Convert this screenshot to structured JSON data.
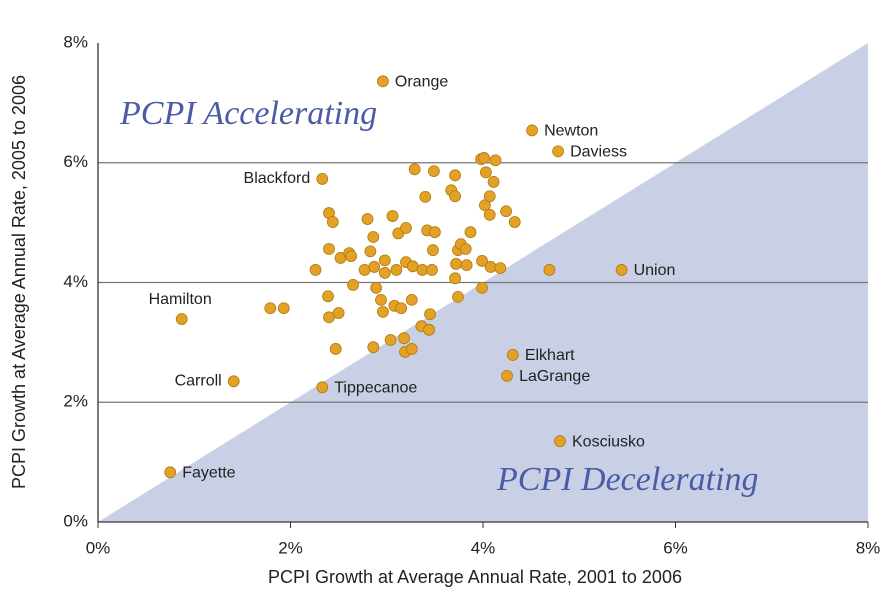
{
  "chart_data": {
    "type": "scatter",
    "x_label": "PCPI Growth at Average Annual Rate, 2001 to 2006",
    "y_label": "PCPI Growth at Average Annual Rate, 2005 to 2006",
    "annotations": [
      "PCPI Accelerating",
      "PCPI Decelerating"
    ],
    "color": "#e3a126",
    "region_color": "#c9d0e6",
    "grid": true,
    "xlim": [
      0,
      8
    ],
    "ylim": [
      0,
      8
    ],
    "xticks": [
      {
        "value": 0,
        "label": "0%"
      },
      {
        "value": 2,
        "label": "2%"
      },
      {
        "value": 4,
        "label": "4%"
      },
      {
        "value": 6,
        "label": "6%"
      },
      {
        "value": 8,
        "label": "8%"
      }
    ],
    "yticks": [
      {
        "value": 0,
        "label": "0%"
      },
      {
        "value": 2,
        "label": "2%"
      },
      {
        "value": 4,
        "label": "4%"
      },
      {
        "value": 6,
        "label": "6%"
      },
      {
        "value": 8,
        "label": "8%"
      }
    ],
    "labels": [
      "Orange",
      "Newton",
      "Daviess",
      "Blackford",
      "Union",
      "Hamilton",
      "Elkhart",
      "LaGrange",
      "Carroll",
      "Tippecanoe",
      "Kosciusko",
      "Fayette",
      null,
      null,
      null,
      null,
      null,
      null,
      null,
      null,
      null,
      null,
      null,
      null,
      null,
      null,
      null,
      null,
      null,
      null,
      null,
      null,
      null,
      null,
      null,
      null,
      null,
      null,
      null,
      null,
      null,
      null,
      null,
      null,
      null,
      null,
      null,
      null,
      null,
      null,
      null,
      null,
      null,
      null,
      null,
      null,
      null,
      null,
      null,
      null,
      null,
      null,
      null,
      null,
      null,
      null,
      null,
      null,
      null,
      null,
      null,
      null,
      null,
      null,
      null,
      null,
      null,
      null,
      null,
      null,
      null,
      null,
      null,
      null,
      null
    ],
    "x": [
      2.96,
      4.51,
      4.78,
      2.33,
      5.44,
      0.87,
      4.31,
      4.25,
      1.41,
      2.33,
      4.8,
      0.75,
      1.79,
      1.93,
      2.26,
      2.4,
      2.44,
      2.4,
      2.39,
      2.4,
      2.5,
      2.47,
      2.52,
      2.61,
      2.63,
      2.65,
      2.77,
      2.8,
      2.83,
      2.86,
      2.87,
      2.86,
      2.89,
      2.94,
      2.98,
      2.96,
      2.98,
      3.04,
      3.06,
      3.08,
      3.1,
      3.12,
      3.15,
      3.18,
      3.2,
      3.2,
      3.19,
      3.26,
      3.26,
      3.27,
      3.29,
      3.36,
      3.37,
      3.42,
      3.45,
      3.44,
      3.4,
      3.48,
      3.49,
      3.47,
      3.5,
      3.67,
      3.71,
      3.71,
      3.74,
      3.71,
      3.72,
      3.74,
      3.77,
      3.82,
      3.83,
      3.87,
      3.98,
      4.01,
      3.99,
      3.99,
      4.03,
      4.02,
      4.07,
      4.07,
      4.11,
      4.13,
      4.08,
      4.18,
      4.24,
      4.33,
      4.69
    ],
    "y": [
      7.36,
      6.54,
      6.19,
      5.73,
      4.21,
      3.39,
      2.79,
      2.44,
      2.35,
      2.25,
      1.35,
      0.83,
      3.57,
      3.57,
      4.21,
      5.16,
      5.01,
      4.56,
      3.77,
      3.42,
      3.49,
      2.89,
      4.41,
      4.49,
      4.44,
      3.96,
      4.21,
      5.06,
      4.52,
      4.76,
      4.26,
      2.92,
      3.91,
      3.71,
      4.37,
      3.51,
      4.16,
      3.04,
      5.11,
      3.61,
      4.21,
      4.82,
      3.57,
      3.07,
      4.91,
      4.34,
      2.84,
      2.89,
      3.71,
      4.27,
      5.89,
      3.27,
      4.21,
      4.87,
      3.47,
      3.21,
      5.43,
      4.54,
      5.86,
      4.21,
      4.84,
      5.54,
      5.44,
      5.79,
      3.76,
      4.07,
      4.31,
      4.54,
      4.64,
      4.56,
      4.29,
      4.84,
      6.06,
      6.08,
      4.36,
      3.91,
      5.84,
      5.29,
      5.13,
      5.44,
      5.68,
      6.04,
      4.26,
      4.24,
      5.19,
      5.01,
      4.21
    ]
  }
}
